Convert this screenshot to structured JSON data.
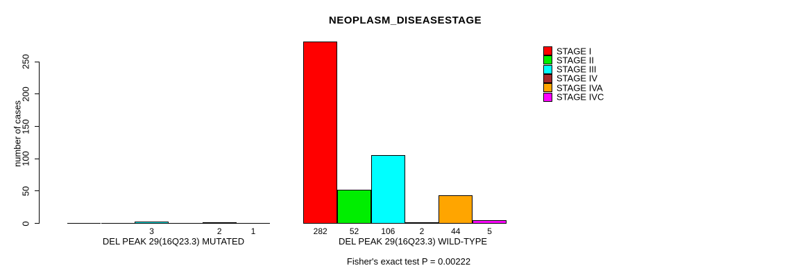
{
  "chart_data": {
    "type": "bar",
    "title": "NEOPLASM_DISEASESTAGE",
    "ylabel": "number of cases",
    "xlabel": "",
    "ylim": [
      0,
      285
    ],
    "yticks": [
      0,
      50,
      100,
      150,
      200,
      250
    ],
    "grid": false,
    "legend_position": "right",
    "categories": [
      "DEL PEAK 29(16Q23.3) MUTATED",
      "DEL PEAK 29(16Q23.3) WILD-TYPE"
    ],
    "series": [
      {
        "name": "STAGE I",
        "color": "#FF0000",
        "values": [
          0,
          282
        ]
      },
      {
        "name": "STAGE II",
        "color": "#00EE00",
        "values": [
          0,
          52
        ]
      },
      {
        "name": "STAGE III",
        "color": "#00FFFF",
        "values": [
          3,
          106
        ]
      },
      {
        "name": "STAGE IV",
        "color": "#A52A2A",
        "values": [
          0,
          2
        ]
      },
      {
        "name": "STAGE IVA",
        "color": "#FFA500",
        "values": [
          2,
          44
        ]
      },
      {
        "name": "STAGE IVC",
        "color": "#FF00FF",
        "values": [
          1,
          5
        ]
      }
    ],
    "bar_value_labels": [
      [
        "",
        "",
        "3",
        "",
        "2",
        "1"
      ],
      [
        "282",
        "52",
        "106",
        "2",
        "44",
        "5"
      ]
    ],
    "annotation": "Fisher's exact test P = 0.00222",
    "axis_color": "#000000",
    "bar_border_color": "#000000"
  }
}
